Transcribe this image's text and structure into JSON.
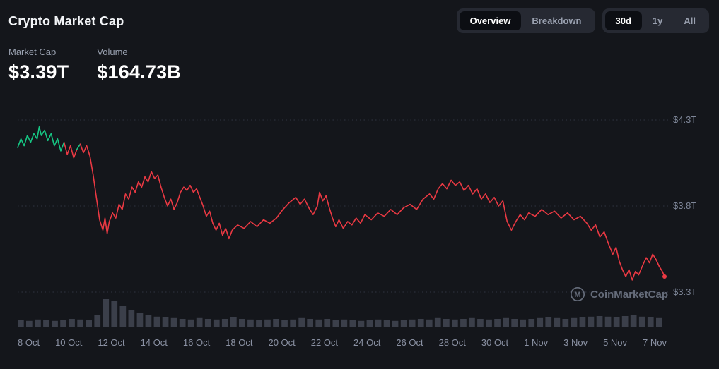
{
  "page": {
    "title": "Crypto Market Cap"
  },
  "header": {
    "view_toggle": {
      "options": [
        {
          "label": "Overview",
          "active": true
        },
        {
          "label": "Breakdown",
          "active": false
        }
      ]
    },
    "range_toggle": {
      "options": [
        {
          "label": "30d",
          "active": true
        },
        {
          "label": "1y",
          "active": false
        },
        {
          "label": "All",
          "active": false
        }
      ]
    }
  },
  "stats": {
    "market_cap": {
      "label": "Market Cap",
      "value": "$3.39T"
    },
    "volume": {
      "label": "Volume",
      "value": "$164.73B"
    }
  },
  "watermark": {
    "logo_letter": "M",
    "text": "CoinMarketCap"
  },
  "colors": {
    "background": "#14161b",
    "accent_up": "#16c784",
    "accent_down": "#ea3943",
    "text_primary": "#ffffff",
    "text_secondary": "#9aa2b1"
  },
  "chart_data": {
    "type": "line",
    "title": "Crypto Market Cap (30d)",
    "unit": "USD trillions",
    "x_range_days": [
      0,
      30
    ],
    "x_tick_labels": [
      "8 Oct",
      "10 Oct",
      "12 Oct",
      "14 Oct",
      "16 Oct",
      "18 Oct",
      "20 Oct",
      "22 Oct",
      "24 Oct",
      "26 Oct",
      "28 Oct",
      "30 Oct",
      "1 Nov",
      "3 Nov",
      "5 Nov",
      "7 Nov"
    ],
    "y_ticks": [
      {
        "label": "$4.3T",
        "value": 4.3
      },
      {
        "label": "$3.8T",
        "value": 3.8
      },
      {
        "label": "$3.3T",
        "value": 3.3
      }
    ],
    "start_value_threshold": 4.14,
    "latest_value": 3.39,
    "line_color_up": "#16c784",
    "line_color_down": "#ea3943",
    "grid_color": "#2f3442",
    "volume_bar_color": "#3b3f4a",
    "points": [
      [
        0,
        4.14
      ],
      [
        0.15,
        4.19
      ],
      [
        0.3,
        4.15
      ],
      [
        0.45,
        4.21
      ],
      [
        0.6,
        4.17
      ],
      [
        0.75,
        4.22
      ],
      [
        0.9,
        4.19
      ],
      [
        1,
        4.26
      ],
      [
        1.1,
        4.21
      ],
      [
        1.25,
        4.24
      ],
      [
        1.4,
        4.18
      ],
      [
        1.55,
        4.22
      ],
      [
        1.7,
        4.15
      ],
      [
        1.85,
        4.19
      ],
      [
        2,
        4.12
      ],
      [
        2.15,
        4.17
      ],
      [
        2.3,
        4.1
      ],
      [
        2.45,
        4.15
      ],
      [
        2.6,
        4.08
      ],
      [
        2.75,
        4.13
      ],
      [
        2.9,
        4.16
      ],
      [
        3.05,
        4.11
      ],
      [
        3.2,
        4.15
      ],
      [
        3.35,
        4.09
      ],
      [
        3.5,
        3.98
      ],
      [
        3.65,
        3.85
      ],
      [
        3.8,
        3.72
      ],
      [
        3.95,
        3.66
      ],
      [
        4.05,
        3.73
      ],
      [
        4.15,
        3.64
      ],
      [
        4.25,
        3.71
      ],
      [
        4.4,
        3.76
      ],
      [
        4.55,
        3.73
      ],
      [
        4.7,
        3.81
      ],
      [
        4.85,
        3.78
      ],
      [
        5,
        3.87
      ],
      [
        5.15,
        3.84
      ],
      [
        5.3,
        3.91
      ],
      [
        5.45,
        3.88
      ],
      [
        5.6,
        3.94
      ],
      [
        5.75,
        3.91
      ],
      [
        5.9,
        3.97
      ],
      [
        6.05,
        3.94
      ],
      [
        6.2,
        4.0
      ],
      [
        6.35,
        3.96
      ],
      [
        6.5,
        3.98
      ],
      [
        6.65,
        3.91
      ],
      [
        6.8,
        3.85
      ],
      [
        6.95,
        3.8
      ],
      [
        7.1,
        3.84
      ],
      [
        7.25,
        3.78
      ],
      [
        7.4,
        3.82
      ],
      [
        7.55,
        3.88
      ],
      [
        7.7,
        3.91
      ],
      [
        7.85,
        3.89
      ],
      [
        8,
        3.92
      ],
      [
        8.15,
        3.88
      ],
      [
        8.3,
        3.9
      ],
      [
        8.45,
        3.85
      ],
      [
        8.6,
        3.8
      ],
      [
        8.75,
        3.74
      ],
      [
        8.9,
        3.77
      ],
      [
        9.05,
        3.7
      ],
      [
        9.2,
        3.66
      ],
      [
        9.35,
        3.7
      ],
      [
        9.5,
        3.63
      ],
      [
        9.65,
        3.67
      ],
      [
        9.8,
        3.61
      ],
      [
        9.95,
        3.66
      ],
      [
        10.2,
        3.69
      ],
      [
        10.5,
        3.67
      ],
      [
        10.8,
        3.71
      ],
      [
        11.1,
        3.68
      ],
      [
        11.4,
        3.72
      ],
      [
        11.7,
        3.7
      ],
      [
        12,
        3.73
      ],
      [
        12.3,
        3.78
      ],
      [
        12.6,
        3.82
      ],
      [
        12.9,
        3.85
      ],
      [
        13.1,
        3.81
      ],
      [
        13.3,
        3.84
      ],
      [
        13.5,
        3.79
      ],
      [
        13.7,
        3.75
      ],
      [
        13.9,
        3.8
      ],
      [
        14,
        3.88
      ],
      [
        14.15,
        3.83
      ],
      [
        14.3,
        3.86
      ],
      [
        14.45,
        3.79
      ],
      [
        14.6,
        3.73
      ],
      [
        14.75,
        3.68
      ],
      [
        14.9,
        3.72
      ],
      [
        15.1,
        3.67
      ],
      [
        15.3,
        3.71
      ],
      [
        15.5,
        3.69
      ],
      [
        15.7,
        3.73
      ],
      [
        15.9,
        3.7
      ],
      [
        16.1,
        3.75
      ],
      [
        16.4,
        3.72
      ],
      [
        16.7,
        3.76
      ],
      [
        17,
        3.74
      ],
      [
        17.3,
        3.78
      ],
      [
        17.6,
        3.75
      ],
      [
        17.9,
        3.79
      ],
      [
        18.2,
        3.81
      ],
      [
        18.5,
        3.78
      ],
      [
        18.8,
        3.84
      ],
      [
        19.1,
        3.87
      ],
      [
        19.3,
        3.84
      ],
      [
        19.5,
        3.9
      ],
      [
        19.7,
        3.93
      ],
      [
        19.9,
        3.9
      ],
      [
        20.1,
        3.95
      ],
      [
        20.3,
        3.92
      ],
      [
        20.5,
        3.94
      ],
      [
        20.7,
        3.89
      ],
      [
        20.9,
        3.92
      ],
      [
        21.1,
        3.87
      ],
      [
        21.3,
        3.9
      ],
      [
        21.5,
        3.84
      ],
      [
        21.7,
        3.87
      ],
      [
        21.9,
        3.82
      ],
      [
        22.1,
        3.85
      ],
      [
        22.3,
        3.8
      ],
      [
        22.5,
        3.83
      ],
      [
        22.7,
        3.71
      ],
      [
        22.9,
        3.66
      ],
      [
        23.1,
        3.71
      ],
      [
        23.3,
        3.75
      ],
      [
        23.5,
        3.72
      ],
      [
        23.7,
        3.76
      ],
      [
        24,
        3.74
      ],
      [
        24.3,
        3.78
      ],
      [
        24.6,
        3.75
      ],
      [
        24.9,
        3.77
      ],
      [
        25.2,
        3.73
      ],
      [
        25.5,
        3.76
      ],
      [
        25.8,
        3.72
      ],
      [
        26.1,
        3.74
      ],
      [
        26.4,
        3.7
      ],
      [
        26.6,
        3.66
      ],
      [
        26.8,
        3.69
      ],
      [
        27,
        3.62
      ],
      [
        27.2,
        3.65
      ],
      [
        27.4,
        3.58
      ],
      [
        27.6,
        3.52
      ],
      [
        27.75,
        3.56
      ],
      [
        27.9,
        3.48
      ],
      [
        28.05,
        3.43
      ],
      [
        28.2,
        3.39
      ],
      [
        28.35,
        3.43
      ],
      [
        28.5,
        3.37
      ],
      [
        28.65,
        3.42
      ],
      [
        28.8,
        3.4
      ],
      [
        29,
        3.46
      ],
      [
        29.15,
        3.5
      ],
      [
        29.3,
        3.47
      ],
      [
        29.45,
        3.52
      ],
      [
        29.6,
        3.49
      ],
      [
        29.75,
        3.45
      ],
      [
        29.9,
        3.42
      ],
      [
        30,
        3.39
      ]
    ],
    "volume_bars_rel": [
      0.25,
      0.23,
      0.28,
      0.25,
      0.23,
      0.25,
      0.3,
      0.28,
      0.25,
      0.45,
      1.0,
      0.95,
      0.75,
      0.6,
      0.5,
      0.43,
      0.38,
      0.35,
      0.33,
      0.3,
      0.28,
      0.33,
      0.3,
      0.28,
      0.3,
      0.35,
      0.3,
      0.28,
      0.25,
      0.28,
      0.3,
      0.25,
      0.28,
      0.33,
      0.3,
      0.28,
      0.3,
      0.25,
      0.28,
      0.25,
      0.23,
      0.25,
      0.28,
      0.25,
      0.23,
      0.25,
      0.28,
      0.3,
      0.28,
      0.33,
      0.3,
      0.28,
      0.3,
      0.33,
      0.3,
      0.28,
      0.3,
      0.33,
      0.3,
      0.28,
      0.3,
      0.33,
      0.35,
      0.33,
      0.3,
      0.33,
      0.35,
      0.38,
      0.4,
      0.38,
      0.35,
      0.4,
      0.43,
      0.38,
      0.35,
      0.33
    ]
  }
}
